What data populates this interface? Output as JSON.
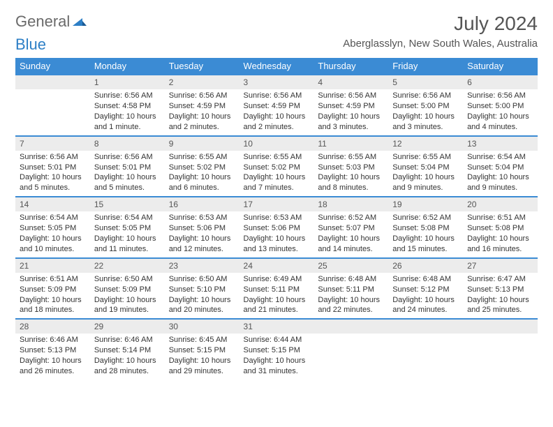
{
  "logo": {
    "general": "General",
    "blue": "Blue"
  },
  "title": "July 2024",
  "location": "Aberglasslyn, New South Wales, Australia",
  "columns": [
    "Sunday",
    "Monday",
    "Tuesday",
    "Wednesday",
    "Thursday",
    "Friday",
    "Saturday"
  ],
  "colors": {
    "header_bg": "#3b8bd4",
    "daynum_bg": "#ececec",
    "accent_border": "#3b8bd4",
    "text": "#333333",
    "muted": "#555555"
  },
  "weeks": [
    [
      {
        "day": "",
        "lines": []
      },
      {
        "day": "1",
        "lines": [
          "Sunrise: 6:56 AM",
          "Sunset: 4:58 PM",
          "Daylight: 10 hours and 1 minute."
        ]
      },
      {
        "day": "2",
        "lines": [
          "Sunrise: 6:56 AM",
          "Sunset: 4:59 PM",
          "Daylight: 10 hours and 2 minutes."
        ]
      },
      {
        "day": "3",
        "lines": [
          "Sunrise: 6:56 AM",
          "Sunset: 4:59 PM",
          "Daylight: 10 hours and 2 minutes."
        ]
      },
      {
        "day": "4",
        "lines": [
          "Sunrise: 6:56 AM",
          "Sunset: 4:59 PM",
          "Daylight: 10 hours and 3 minutes."
        ]
      },
      {
        "day": "5",
        "lines": [
          "Sunrise: 6:56 AM",
          "Sunset: 5:00 PM",
          "Daylight: 10 hours and 3 minutes."
        ]
      },
      {
        "day": "6",
        "lines": [
          "Sunrise: 6:56 AM",
          "Sunset: 5:00 PM",
          "Daylight: 10 hours and 4 minutes."
        ]
      }
    ],
    [
      {
        "day": "7",
        "lines": [
          "Sunrise: 6:56 AM",
          "Sunset: 5:01 PM",
          "Daylight: 10 hours and 5 minutes."
        ]
      },
      {
        "day": "8",
        "lines": [
          "Sunrise: 6:56 AM",
          "Sunset: 5:01 PM",
          "Daylight: 10 hours and 5 minutes."
        ]
      },
      {
        "day": "9",
        "lines": [
          "Sunrise: 6:55 AM",
          "Sunset: 5:02 PM",
          "Daylight: 10 hours and 6 minutes."
        ]
      },
      {
        "day": "10",
        "lines": [
          "Sunrise: 6:55 AM",
          "Sunset: 5:02 PM",
          "Daylight: 10 hours and 7 minutes."
        ]
      },
      {
        "day": "11",
        "lines": [
          "Sunrise: 6:55 AM",
          "Sunset: 5:03 PM",
          "Daylight: 10 hours and 8 minutes."
        ]
      },
      {
        "day": "12",
        "lines": [
          "Sunrise: 6:55 AM",
          "Sunset: 5:04 PM",
          "Daylight: 10 hours and 9 minutes."
        ]
      },
      {
        "day": "13",
        "lines": [
          "Sunrise: 6:54 AM",
          "Sunset: 5:04 PM",
          "Daylight: 10 hours and 9 minutes."
        ]
      }
    ],
    [
      {
        "day": "14",
        "lines": [
          "Sunrise: 6:54 AM",
          "Sunset: 5:05 PM",
          "Daylight: 10 hours and 10 minutes."
        ]
      },
      {
        "day": "15",
        "lines": [
          "Sunrise: 6:54 AM",
          "Sunset: 5:05 PM",
          "Daylight: 10 hours and 11 minutes."
        ]
      },
      {
        "day": "16",
        "lines": [
          "Sunrise: 6:53 AM",
          "Sunset: 5:06 PM",
          "Daylight: 10 hours and 12 minutes."
        ]
      },
      {
        "day": "17",
        "lines": [
          "Sunrise: 6:53 AM",
          "Sunset: 5:06 PM",
          "Daylight: 10 hours and 13 minutes."
        ]
      },
      {
        "day": "18",
        "lines": [
          "Sunrise: 6:52 AM",
          "Sunset: 5:07 PM",
          "Daylight: 10 hours and 14 minutes."
        ]
      },
      {
        "day": "19",
        "lines": [
          "Sunrise: 6:52 AM",
          "Sunset: 5:08 PM",
          "Daylight: 10 hours and 15 minutes."
        ]
      },
      {
        "day": "20",
        "lines": [
          "Sunrise: 6:51 AM",
          "Sunset: 5:08 PM",
          "Daylight: 10 hours and 16 minutes."
        ]
      }
    ],
    [
      {
        "day": "21",
        "lines": [
          "Sunrise: 6:51 AM",
          "Sunset: 5:09 PM",
          "Daylight: 10 hours and 18 minutes."
        ]
      },
      {
        "day": "22",
        "lines": [
          "Sunrise: 6:50 AM",
          "Sunset: 5:09 PM",
          "Daylight: 10 hours and 19 minutes."
        ]
      },
      {
        "day": "23",
        "lines": [
          "Sunrise: 6:50 AM",
          "Sunset: 5:10 PM",
          "Daylight: 10 hours and 20 minutes."
        ]
      },
      {
        "day": "24",
        "lines": [
          "Sunrise: 6:49 AM",
          "Sunset: 5:11 PM",
          "Daylight: 10 hours and 21 minutes."
        ]
      },
      {
        "day": "25",
        "lines": [
          "Sunrise: 6:48 AM",
          "Sunset: 5:11 PM",
          "Daylight: 10 hours and 22 minutes."
        ]
      },
      {
        "day": "26",
        "lines": [
          "Sunrise: 6:48 AM",
          "Sunset: 5:12 PM",
          "Daylight: 10 hours and 24 minutes."
        ]
      },
      {
        "day": "27",
        "lines": [
          "Sunrise: 6:47 AM",
          "Sunset: 5:13 PM",
          "Daylight: 10 hours and 25 minutes."
        ]
      }
    ],
    [
      {
        "day": "28",
        "lines": [
          "Sunrise: 6:46 AM",
          "Sunset: 5:13 PM",
          "Daylight: 10 hours and 26 minutes."
        ]
      },
      {
        "day": "29",
        "lines": [
          "Sunrise: 6:46 AM",
          "Sunset: 5:14 PM",
          "Daylight: 10 hours and 28 minutes."
        ]
      },
      {
        "day": "30",
        "lines": [
          "Sunrise: 6:45 AM",
          "Sunset: 5:15 PM",
          "Daylight: 10 hours and 29 minutes."
        ]
      },
      {
        "day": "31",
        "lines": [
          "Sunrise: 6:44 AM",
          "Sunset: 5:15 PM",
          "Daylight: 10 hours and 31 minutes."
        ]
      },
      {
        "day": "",
        "lines": []
      },
      {
        "day": "",
        "lines": []
      },
      {
        "day": "",
        "lines": []
      }
    ]
  ]
}
